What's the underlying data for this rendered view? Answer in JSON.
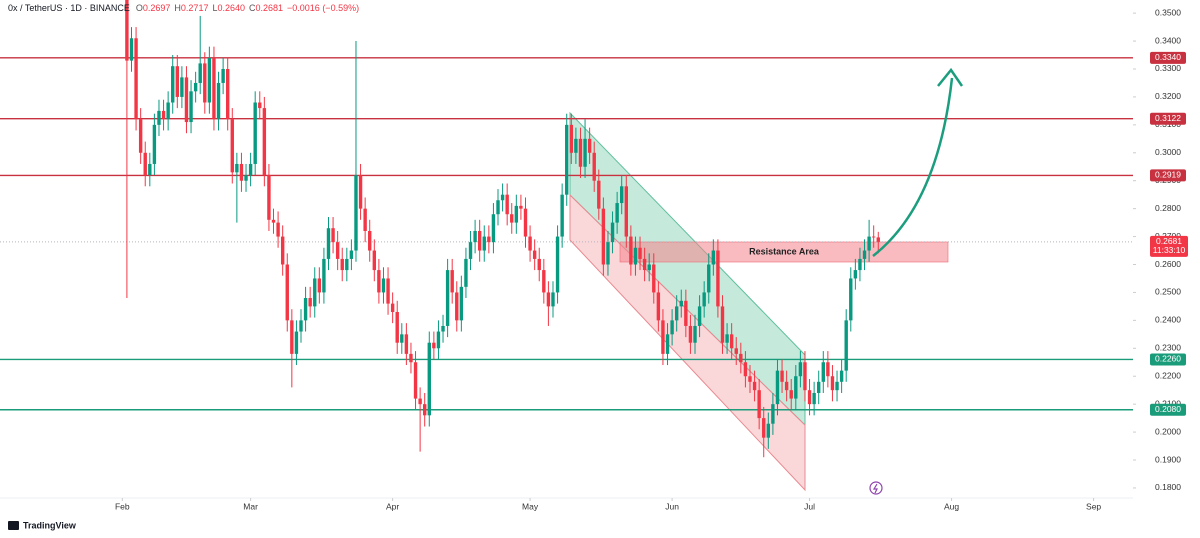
{
  "chart_data": {
    "type": "candlestick",
    "header": {
      "symbol": "0x / TetherUS · 1D · BINANCE",
      "fields": [
        {
          "key": "O",
          "value": "0.2697"
        },
        {
          "key": "H",
          "value": "0.2717"
        },
        {
          "key": "L",
          "value": "0.2640"
        },
        {
          "key": "C",
          "value": "0.2681"
        }
      ],
      "change": "−0.0016 (−0.59%)"
    },
    "x": [
      32,
      33,
      34,
      35,
      36,
      37,
      38,
      39,
      40,
      41,
      42,
      43,
      44,
      45,
      46,
      47,
      48,
      49,
      50,
      51,
      52,
      53,
      54,
      55,
      56,
      57,
      58,
      59,
      60,
      61,
      62,
      63,
      64,
      65,
      66,
      67,
      68,
      69,
      70,
      71,
      72,
      73,
      74,
      75,
      76,
      77,
      78,
      79,
      80,
      81,
      82,
      83,
      84,
      85,
      86,
      87,
      88,
      89,
      90,
      91,
      92,
      93,
      94,
      95,
      96,
      97,
      98,
      99,
      100,
      101,
      102,
      103,
      104,
      105,
      106,
      107,
      108,
      109,
      110,
      111,
      112,
      113,
      114,
      115,
      116,
      117,
      118,
      119,
      120,
      121,
      122,
      123,
      124,
      125,
      126,
      127,
      128,
      129,
      130,
      131,
      132,
      133,
      134,
      135,
      136,
      137,
      138,
      139,
      140,
      141,
      142,
      143,
      144,
      145,
      146,
      147,
      148,
      149,
      150,
      151,
      152,
      153,
      154,
      155,
      156,
      157,
      158,
      159,
      160,
      161,
      162,
      163,
      164,
      165,
      166,
      167,
      168,
      169,
      170,
      171,
      172,
      173,
      174,
      175,
      176,
      177,
      178,
      179,
      180,
      181,
      182,
      183,
      184,
      185,
      186,
      187,
      188,
      189,
      190,
      191,
      192,
      193,
      194,
      195,
      196
    ],
    "xlim": [
      4.3,
      251.6
    ],
    "xticks": [
      {
        "value": 31,
        "label": "Feb"
      },
      {
        "value": 59,
        "label": "Mar"
      },
      {
        "value": 90,
        "label": "Apr"
      },
      {
        "value": 120,
        "label": "May"
      },
      {
        "value": 151,
        "label": "Jun"
      },
      {
        "value": 181,
        "label": "Jul"
      },
      {
        "value": 212,
        "label": "Aug"
      },
      {
        "value": 243,
        "label": "Sep"
      }
    ],
    "ylim": [
      0.1764,
      0.3547
    ],
    "yticks": [
      {
        "value": 0.35,
        "label": "0.3500"
      },
      {
        "value": 0.34,
        "label": "0.3400"
      },
      {
        "value": 0.33,
        "label": "0.3300"
      },
      {
        "value": 0.32,
        "label": "0.3200"
      },
      {
        "value": 0.31,
        "label": "0.3100"
      },
      {
        "value": 0.3,
        "label": "0.3000"
      },
      {
        "value": 0.29,
        "label": "0.2900"
      },
      {
        "value": 0.28,
        "label": "0.2800"
      },
      {
        "value": 0.27,
        "label": "0.2700"
      },
      {
        "value": 0.26,
        "label": "0.2600"
      },
      {
        "value": 0.25,
        "label": "0.2500"
      },
      {
        "value": 0.24,
        "label": "0.2400"
      },
      {
        "value": 0.23,
        "label": "0.2300"
      },
      {
        "value": 0.22,
        "label": "0.2200"
      },
      {
        "value": 0.21,
        "label": "0.2100"
      },
      {
        "value": 0.2,
        "label": "0.2000"
      },
      {
        "value": 0.19,
        "label": "0.1900"
      },
      {
        "value": 0.18,
        "label": "0.1800"
      }
    ],
    "grid": false,
    "series": [
      {
        "up_color": "#089981",
        "down_color": "#f23645",
        "open": [
          0.356,
          0.333,
          0.341,
          0.312,
          0.3,
          0.292,
          0.296,
          0.31,
          0.315,
          0.312,
          0.318,
          0.331,
          0.32,
          0.327,
          0.311,
          0.322,
          0.325,
          0.332,
          0.318,
          0.334,
          0.312,
          0.325,
          0.33,
          0.312,
          0.293,
          0.296,
          0.29,
          0.292,
          0.296,
          0.318,
          0.316,
          0.292,
          0.276,
          0.275,
          0.27,
          0.26,
          0.24,
          0.228,
          0.236,
          0.24,
          0.248,
          0.245,
          0.255,
          0.25,
          0.262,
          0.273,
          0.268,
          0.262,
          0.258,
          0.262,
          0.265,
          0.292,
          0.28,
          0.272,
          0.265,
          0.258,
          0.25,
          0.255,
          0.246,
          0.243,
          0.232,
          0.235,
          0.228,
          0.225,
          0.212,
          0.21,
          0.206,
          0.232,
          0.23,
          0.236,
          0.238,
          0.258,
          0.25,
          0.24,
          0.252,
          0.262,
          0.268,
          0.272,
          0.265,
          0.27,
          0.268,
          0.278,
          0.283,
          0.285,
          0.278,
          0.275,
          0.281,
          0.28,
          0.27,
          0.265,
          0.262,
          0.258,
          0.25,
          0.245,
          0.25,
          0.27,
          0.285,
          0.31,
          0.3,
          0.305,
          0.295,
          0.305,
          0.3,
          0.29,
          0.28,
          0.26,
          0.268,
          0.275,
          0.282,
          0.288,
          0.27,
          0.26,
          0.266,
          0.262,
          0.258,
          0.26,
          0.25,
          0.24,
          0.228,
          0.235,
          0.24,
          0.245,
          0.247,
          0.238,
          0.232,
          0.238,
          0.245,
          0.25,
          0.26,
          0.265,
          0.245,
          0.232,
          0.235,
          0.23,
          0.228,
          0.225,
          0.22,
          0.218,
          0.215,
          0.205,
          0.198,
          0.203,
          0.21,
          0.222,
          0.218,
          0.215,
          0.212,
          0.22,
          0.225,
          0.215,
          0.21,
          0.214,
          0.218,
          0.225,
          0.22,
          0.215,
          0.218,
          0.222,
          0.24,
          0.255,
          0.258,
          0.262,
          0.265,
          0.27,
          0.2697
        ],
        "high": [
          0.36,
          0.345,
          0.345,
          0.316,
          0.304,
          0.3,
          0.314,
          0.319,
          0.319,
          0.322,
          0.335,
          0.335,
          0.331,
          0.331,
          0.326,
          0.329,
          0.349,
          0.336,
          0.338,
          0.338,
          0.329,
          0.334,
          0.334,
          0.316,
          0.3,
          0.3,
          0.296,
          0.3,
          0.322,
          0.322,
          0.32,
          0.296,
          0.28,
          0.279,
          0.274,
          0.264,
          0.244,
          0.24,
          0.244,
          0.252,
          0.252,
          0.259,
          0.259,
          0.266,
          0.277,
          0.277,
          0.272,
          0.266,
          0.266,
          0.269,
          0.34,
          0.296,
          0.284,
          0.276,
          0.269,
          0.262,
          0.259,
          0.259,
          0.25,
          0.247,
          0.239,
          0.239,
          0.232,
          0.229,
          0.216,
          0.214,
          0.236,
          0.236,
          0.24,
          0.242,
          0.262,
          0.262,
          0.254,
          0.256,
          0.266,
          0.272,
          0.276,
          0.276,
          0.274,
          0.274,
          0.282,
          0.287,
          0.289,
          0.289,
          0.282,
          0.285,
          0.285,
          0.284,
          0.274,
          0.269,
          0.266,
          0.262,
          0.254,
          0.254,
          0.274,
          0.289,
          0.314,
          0.314,
          0.309,
          0.309,
          0.312,
          0.309,
          0.304,
          0.294,
          0.284,
          0.272,
          0.279,
          0.286,
          0.292,
          0.292,
          0.274,
          0.27,
          0.27,
          0.266,
          0.264,
          0.264,
          0.254,
          0.244,
          0.239,
          0.244,
          0.249,
          0.251,
          0.251,
          0.242,
          0.242,
          0.249,
          0.254,
          0.264,
          0.269,
          0.269,
          0.249,
          0.239,
          0.239,
          0.234,
          0.232,
          0.229,
          0.224,
          0.222,
          0.219,
          0.209,
          0.207,
          0.214,
          0.226,
          0.226,
          0.222,
          0.219,
          0.224,
          0.229,
          0.229,
          0.219,
          0.218,
          0.222,
          0.229,
          0.229,
          0.224,
          0.222,
          0.226,
          0.244,
          0.259,
          0.262,
          0.266,
          0.269,
          0.276,
          0.274,
          0.2717
        ],
        "low": [
          0.248,
          0.329,
          0.308,
          0.296,
          0.288,
          0.288,
          0.292,
          0.306,
          0.308,
          0.308,
          0.314,
          0.316,
          0.316,
          0.307,
          0.307,
          0.318,
          0.321,
          0.314,
          0.314,
          0.308,
          0.308,
          0.321,
          0.308,
          0.289,
          0.275,
          0.286,
          0.286,
          0.288,
          0.292,
          0.312,
          0.288,
          0.272,
          0.271,
          0.266,
          0.256,
          0.236,
          0.216,
          0.224,
          0.232,
          0.236,
          0.241,
          0.241,
          0.246,
          0.246,
          0.258,
          0.264,
          0.258,
          0.254,
          0.254,
          0.258,
          0.261,
          0.276,
          0.268,
          0.261,
          0.254,
          0.246,
          0.246,
          0.242,
          0.239,
          0.228,
          0.228,
          0.224,
          0.221,
          0.208,
          0.193,
          0.202,
          0.202,
          0.226,
          0.226,
          0.232,
          0.234,
          0.246,
          0.236,
          0.236,
          0.248,
          0.258,
          0.264,
          0.261,
          0.261,
          0.264,
          0.264,
          0.274,
          0.279,
          0.274,
          0.271,
          0.271,
          0.276,
          0.266,
          0.261,
          0.258,
          0.254,
          0.246,
          0.238,
          0.241,
          0.246,
          0.266,
          0.281,
          0.296,
          0.296,
          0.291,
          0.291,
          0.296,
          0.286,
          0.276,
          0.256,
          0.256,
          0.264,
          0.271,
          0.278,
          0.266,
          0.256,
          0.256,
          0.258,
          0.254,
          0.254,
          0.246,
          0.236,
          0.224,
          0.224,
          0.231,
          0.236,
          0.241,
          0.234,
          0.228,
          0.228,
          0.234,
          0.241,
          0.246,
          0.256,
          0.241,
          0.228,
          0.228,
          0.226,
          0.224,
          0.221,
          0.216,
          0.214,
          0.211,
          0.201,
          0.191,
          0.194,
          0.199,
          0.206,
          0.214,
          0.211,
          0.208,
          0.208,
          0.216,
          0.211,
          0.206,
          0.206,
          0.21,
          0.214,
          0.216,
          0.211,
          0.211,
          0.214,
          0.218,
          0.236,
          0.251,
          0.254,
          0.258,
          0.261,
          0.266,
          0.264
        ],
        "close": [
          0.333,
          0.341,
          0.312,
          0.3,
          0.292,
          0.296,
          0.31,
          0.315,
          0.312,
          0.318,
          0.331,
          0.32,
          0.327,
          0.311,
          0.322,
          0.325,
          0.332,
          0.318,
          0.334,
          0.312,
          0.325,
          0.33,
          0.312,
          0.293,
          0.296,
          0.29,
          0.292,
          0.296,
          0.318,
          0.316,
          0.292,
          0.276,
          0.275,
          0.27,
          0.26,
          0.24,
          0.228,
          0.236,
          0.24,
          0.248,
          0.245,
          0.255,
          0.25,
          0.262,
          0.273,
          0.268,
          0.262,
          0.258,
          0.262,
          0.265,
          0.292,
          0.28,
          0.272,
          0.265,
          0.258,
          0.25,
          0.255,
          0.246,
          0.243,
          0.232,
          0.235,
          0.228,
          0.225,
          0.212,
          0.21,
          0.206,
          0.232,
          0.23,
          0.236,
          0.238,
          0.258,
          0.25,
          0.24,
          0.252,
          0.262,
          0.268,
          0.272,
          0.265,
          0.27,
          0.268,
          0.278,
          0.283,
          0.285,
          0.278,
          0.275,
          0.281,
          0.28,
          0.27,
          0.265,
          0.262,
          0.258,
          0.25,
          0.245,
          0.25,
          0.27,
          0.285,
          0.31,
          0.3,
          0.305,
          0.295,
          0.305,
          0.3,
          0.29,
          0.28,
          0.26,
          0.268,
          0.275,
          0.282,
          0.288,
          0.27,
          0.26,
          0.266,
          0.262,
          0.258,
          0.26,
          0.25,
          0.24,
          0.228,
          0.235,
          0.24,
          0.245,
          0.247,
          0.238,
          0.232,
          0.238,
          0.245,
          0.25,
          0.26,
          0.265,
          0.245,
          0.232,
          0.235,
          0.23,
          0.228,
          0.225,
          0.22,
          0.218,
          0.215,
          0.205,
          0.198,
          0.203,
          0.21,
          0.222,
          0.218,
          0.215,
          0.212,
          0.22,
          0.225,
          0.215,
          0.21,
          0.214,
          0.218,
          0.225,
          0.22,
          0.215,
          0.218,
          0.222,
          0.24,
          0.255,
          0.258,
          0.262,
          0.265,
          0.27,
          0.2697,
          0.2681
        ]
      }
    ],
    "levels": [
      {
        "value": 0.334,
        "label": "0.3340",
        "color": "#c8313f"
      },
      {
        "value": 0.3122,
        "label": "0.3122",
        "color": "#c8313f"
      },
      {
        "value": 0.2919,
        "label": "0.2919",
        "color": "#c8313f"
      },
      {
        "value": 0.226,
        "label": "0.2260",
        "color": "#1a9c7a"
      },
      {
        "value": 0.208,
        "label": "0.2080",
        "color": "#1a9c7a"
      }
    ],
    "countdown": "11:33:10",
    "annotations": [
      {
        "text": "Resistance Area"
      }
    ],
    "branding": "TradingView"
  }
}
